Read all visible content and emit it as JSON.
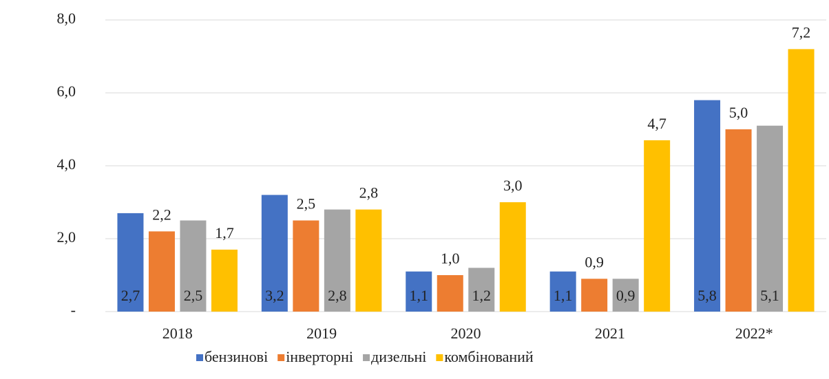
{
  "chart_data": {
    "type": "bar",
    "categories": [
      "2018",
      "2019",
      "2020",
      "2021",
      "2022*"
    ],
    "series": [
      {
        "name": "бензинові",
        "color": "#4472c4",
        "label_position": "inside-base",
        "values": [
          2.7,
          3.2,
          1.1,
          1.1,
          5.8
        ],
        "value_labels": [
          "2,7",
          "3,2",
          "1,1",
          "1,1",
          "5,8"
        ]
      },
      {
        "name": "інверторні",
        "color": "#ed7d31",
        "label_position": "outside-end",
        "values": [
          2.2,
          2.5,
          1.0,
          0.9,
          5.0
        ],
        "value_labels": [
          "2,2",
          "2,5",
          "1,0",
          "0,9",
          "5,0"
        ]
      },
      {
        "name": "дизельні",
        "color": "#a5a5a5",
        "label_position": "inside-base",
        "values": [
          2.5,
          2.8,
          1.2,
          0.9,
          5.1
        ],
        "value_labels": [
          "2,5",
          "2,8",
          "1,2",
          "0,9",
          "5,1"
        ]
      },
      {
        "name": "комбінований",
        "color": "#ffc000",
        "label_position": "outside-end",
        "values": [
          1.7,
          2.8,
          3.0,
          4.7,
          7.2
        ],
        "value_labels": [
          "1,7",
          "2,8",
          "3,0",
          "4,7",
          "7,2"
        ]
      }
    ],
    "ylim": [
      0,
      8
    ],
    "yticks": [
      {
        "value": 0,
        "label": "-"
      },
      {
        "value": 2,
        "label": "2,0"
      },
      {
        "value": 4,
        "label": "4,0"
      },
      {
        "value": 6,
        "label": "6,0"
      },
      {
        "value": 8,
        "label": "8,0"
      }
    ],
    "grid": true,
    "legend": "bottom"
  }
}
